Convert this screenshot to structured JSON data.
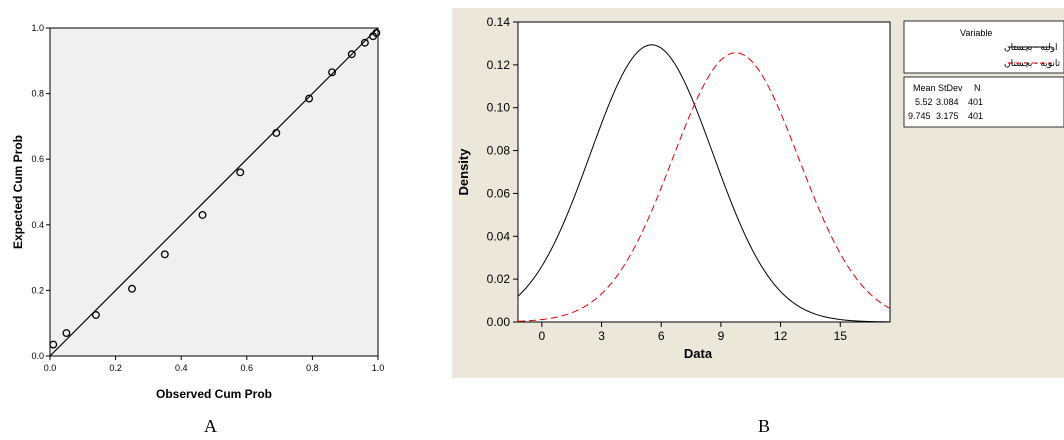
{
  "chart_data": [
    {
      "type": "scatter",
      "xlabel": "Observed Cum Prob",
      "ylabel": "Expected Cum Prob",
      "xlim": [
        0,
        1
      ],
      "ylim": [
        0,
        1
      ],
      "ticks": [
        "0.0",
        "0.2",
        "0.4",
        "0.6",
        "0.8",
        "1.0"
      ],
      "reference_line": [
        [
          0,
          0
        ],
        [
          1,
          1
        ]
      ],
      "points": [
        {
          "x": 0.01,
          "y": 0.035
        },
        {
          "x": 0.05,
          "y": 0.07
        },
        {
          "x": 0.14,
          "y": 0.125
        },
        {
          "x": 0.25,
          "y": 0.205
        },
        {
          "x": 0.35,
          "y": 0.31
        },
        {
          "x": 0.465,
          "y": 0.43
        },
        {
          "x": 0.58,
          "y": 0.56
        },
        {
          "x": 0.69,
          "y": 0.68
        },
        {
          "x": 0.79,
          "y": 0.785
        },
        {
          "x": 0.86,
          "y": 0.865
        },
        {
          "x": 0.92,
          "y": 0.92
        },
        {
          "x": 0.96,
          "y": 0.955
        },
        {
          "x": 0.985,
          "y": 0.975
        },
        {
          "x": 0.995,
          "y": 0.985
        }
      ],
      "background": "#f0f0f0",
      "caption": "A"
    },
    {
      "type": "line",
      "xlabel": "Data",
      "ylabel": "Density",
      "xlim": [
        -1.2,
        17.5
      ],
      "ylim": [
        0,
        0.14
      ],
      "xticks": [
        "0",
        "3",
        "6",
        "9",
        "12",
        "15"
      ],
      "yticks": [
        "0.00",
        "0.02",
        "0.04",
        "0.06",
        "0.08",
        "0.10",
        "0.12",
        "0.14"
      ],
      "series": [
        {
          "name": "اولیه - بچستان",
          "mean": 5.52,
          "stdev": 3.084,
          "n": 401,
          "color": "#000000",
          "style": "solid"
        },
        {
          "name": "ثانویه - بچستان",
          "mean": 9.745,
          "stdev": 3.175,
          "n": 401,
          "color": "#dd0000",
          "style": "dashed"
        }
      ],
      "legend": {
        "title": "Variable",
        "headers": [
          "Mean",
          "StDev",
          "N"
        ],
        "rows": [
          [
            "5.52",
            "3.084",
            "401"
          ],
          [
            "9.745",
            "3.175",
            "401"
          ]
        ],
        "placement": "right"
      },
      "background": "#ece7db",
      "caption": "B"
    }
  ]
}
